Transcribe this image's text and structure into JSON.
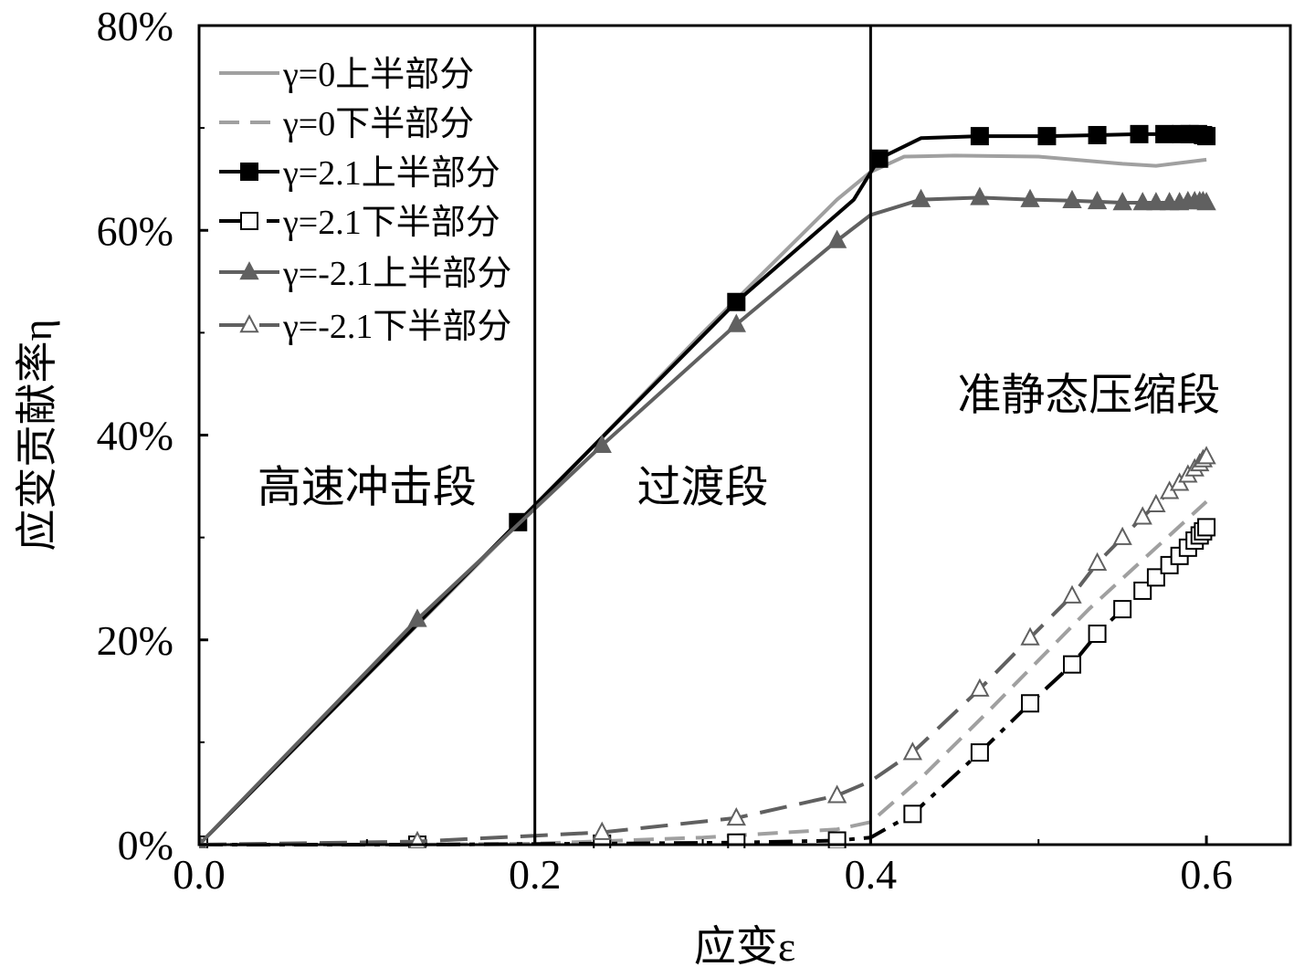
{
  "chart_data": {
    "type": "line",
    "xlabel": "应变ε",
    "ylabel": "应变贡献率η",
    "xlim": [
      0,
      0.65
    ],
    "ylim": [
      0,
      80
    ],
    "x_ticks": [
      0.0,
      0.2,
      0.4,
      0.6
    ],
    "x_tick_labels": [
      "0.0",
      "0.2",
      "0.4",
      "0.6"
    ],
    "y_ticks": [
      0,
      20,
      40,
      60,
      80
    ],
    "y_tick_labels": [
      "0%",
      "20%",
      "40%",
      "60%",
      "80%"
    ],
    "grid": false,
    "legend_position": "top-left",
    "dividers": [
      0.2,
      0.4
    ],
    "regions": [
      {
        "label": "高速冲击段",
        "x": 0.1,
        "y": 33.5
      },
      {
        "label": "过渡段",
        "x": 0.3,
        "y": 33.5
      },
      {
        "label": "准静态压缩段",
        "x": 0.53,
        "y": 42.5
      }
    ],
    "series": [
      {
        "name": "γ=0上半部分",
        "color": "#a0a0a0",
        "dash": "solid",
        "marker": "none",
        "x": [
          0,
          0.1,
          0.2,
          0.3,
          0.38,
          0.4,
          0.42,
          0.45,
          0.5,
          0.55,
          0.57,
          0.6
        ],
        "y": [
          0,
          16.5,
          33,
          50,
          63,
          65.7,
          67.2,
          67.3,
          67.2,
          66.5,
          66.3,
          66.9
        ]
      },
      {
        "name": "γ=0下半部分",
        "color": "#a0a0a0",
        "dash": "dashed",
        "marker": "none",
        "x": [
          0,
          0.13,
          0.2,
          0.3,
          0.38,
          0.4,
          0.43,
          0.47,
          0.5,
          0.53,
          0.56,
          0.6
        ],
        "y": [
          0,
          0,
          0.1,
          0.7,
          1.5,
          2.2,
          6.5,
          13,
          18,
          23,
          27.5,
          33.5
        ]
      },
      {
        "name": "γ=2.1上半部分",
        "color": "#000000",
        "dash": "solid",
        "marker": "filled-square",
        "x": [
          0,
          0.19,
          0.32,
          0.39,
          0.405,
          0.43,
          0.465,
          0.505,
          0.535,
          0.56,
          0.575,
          0.585,
          0.59,
          0.595,
          0.598,
          0.6
        ],
        "y": [
          0,
          31.5,
          53,
          63,
          67,
          69,
          69.2,
          69.2,
          69.3,
          69.4,
          69.4,
          69.4,
          69.4,
          69.4,
          69.3,
          69.2
        ],
        "markers_x": [
          0.19,
          0.32,
          0.405,
          0.465,
          0.505,
          0.535,
          0.56,
          0.575,
          0.585,
          0.59,
          0.595,
          0.598,
          0.6
        ],
        "markers_y": [
          31.5,
          53,
          67,
          69.2,
          69.2,
          69.3,
          69.4,
          69.4,
          69.4,
          69.4,
          69.4,
          69.3,
          69.2
        ]
      },
      {
        "name": "γ=2.1下半部分",
        "color": "#000000",
        "dash": "dashdot",
        "marker": "open-square",
        "x": [
          0,
          0.13,
          0.24,
          0.32,
          0.38,
          0.4,
          0.425,
          0.465,
          0.495,
          0.52,
          0.535,
          0.55,
          0.562,
          0.57,
          0.578,
          0.584,
          0.589,
          0.593,
          0.596,
          0.598,
          0.6
        ],
        "y": [
          0,
          0,
          0.1,
          0.2,
          0.4,
          0.7,
          3,
          9,
          13.8,
          17.6,
          20.6,
          23,
          24.8,
          26.1,
          27.3,
          28.2,
          29,
          29.7,
          30.2,
          30.6,
          31
        ],
        "markers_x": [
          0,
          0.13,
          0.24,
          0.32,
          0.38,
          0.425,
          0.465,
          0.495,
          0.52,
          0.535,
          0.55,
          0.562,
          0.57,
          0.578,
          0.584,
          0.589,
          0.593,
          0.596,
          0.598,
          0.6
        ],
        "markers_y": [
          0,
          0,
          0.1,
          0.2,
          0.4,
          3,
          9,
          13.8,
          17.6,
          20.6,
          23,
          24.8,
          26.1,
          27.3,
          28.2,
          29,
          29.7,
          30.2,
          30.6,
          31
        ]
      },
      {
        "name": "γ=-2.1上半部分",
        "color": "#606060",
        "dash": "solid",
        "marker": "filled-triangle",
        "x": [
          0,
          0.13,
          0.24,
          0.32,
          0.38,
          0.4,
          0.43,
          0.465,
          0.495,
          0.52,
          0.535,
          0.55,
          0.562,
          0.57,
          0.578,
          0.584,
          0.589,
          0.593,
          0.596,
          0.598,
          0.6
        ],
        "y": [
          0,
          22,
          39,
          50.8,
          59,
          61.5,
          63,
          63.2,
          63,
          62.9,
          62.8,
          62.7,
          62.7,
          62.7,
          62.7,
          62.7,
          62.8,
          62.8,
          62.8,
          62.8,
          62.7
        ],
        "markers_x": [
          0,
          0.13,
          0.24,
          0.32,
          0.38,
          0.43,
          0.465,
          0.495,
          0.52,
          0.535,
          0.55,
          0.562,
          0.57,
          0.578,
          0.584,
          0.589,
          0.593,
          0.596,
          0.598,
          0.6
        ],
        "markers_y": [
          0,
          22,
          39,
          50.8,
          59,
          63,
          63.2,
          63,
          62.9,
          62.8,
          62.7,
          62.7,
          62.7,
          62.7,
          62.7,
          62.8,
          62.8,
          62.8,
          62.8,
          62.7
        ]
      },
      {
        "name": "γ=-2.1下半部分",
        "color": "#606060",
        "dash": "longdash",
        "marker": "open-triangle",
        "x": [
          0,
          0.13,
          0.24,
          0.32,
          0.38,
          0.4,
          0.425,
          0.465,
          0.495,
          0.52,
          0.535,
          0.55,
          0.562,
          0.57,
          0.578,
          0.584,
          0.589,
          0.593,
          0.596,
          0.598,
          0.6
        ],
        "y": [
          0,
          0.3,
          1.2,
          2.6,
          4.8,
          6.2,
          9,
          15.2,
          20.2,
          24.3,
          27.5,
          30,
          32,
          33.2,
          34.5,
          35.3,
          36.1,
          36.7,
          37.2,
          37.6,
          37.9
        ],
        "markers_x": [
          0.13,
          0.24,
          0.32,
          0.38,
          0.425,
          0.465,
          0.495,
          0.52,
          0.535,
          0.55,
          0.562,
          0.57,
          0.578,
          0.584,
          0.589,
          0.593,
          0.596,
          0.598,
          0.6
        ],
        "markers_y": [
          0.3,
          1.2,
          2.6,
          4.8,
          9,
          15.2,
          20.2,
          24.3,
          27.5,
          30,
          32,
          33.2,
          34.5,
          35.3,
          36.1,
          36.7,
          37.2,
          37.6,
          37.9
        ]
      }
    ]
  }
}
